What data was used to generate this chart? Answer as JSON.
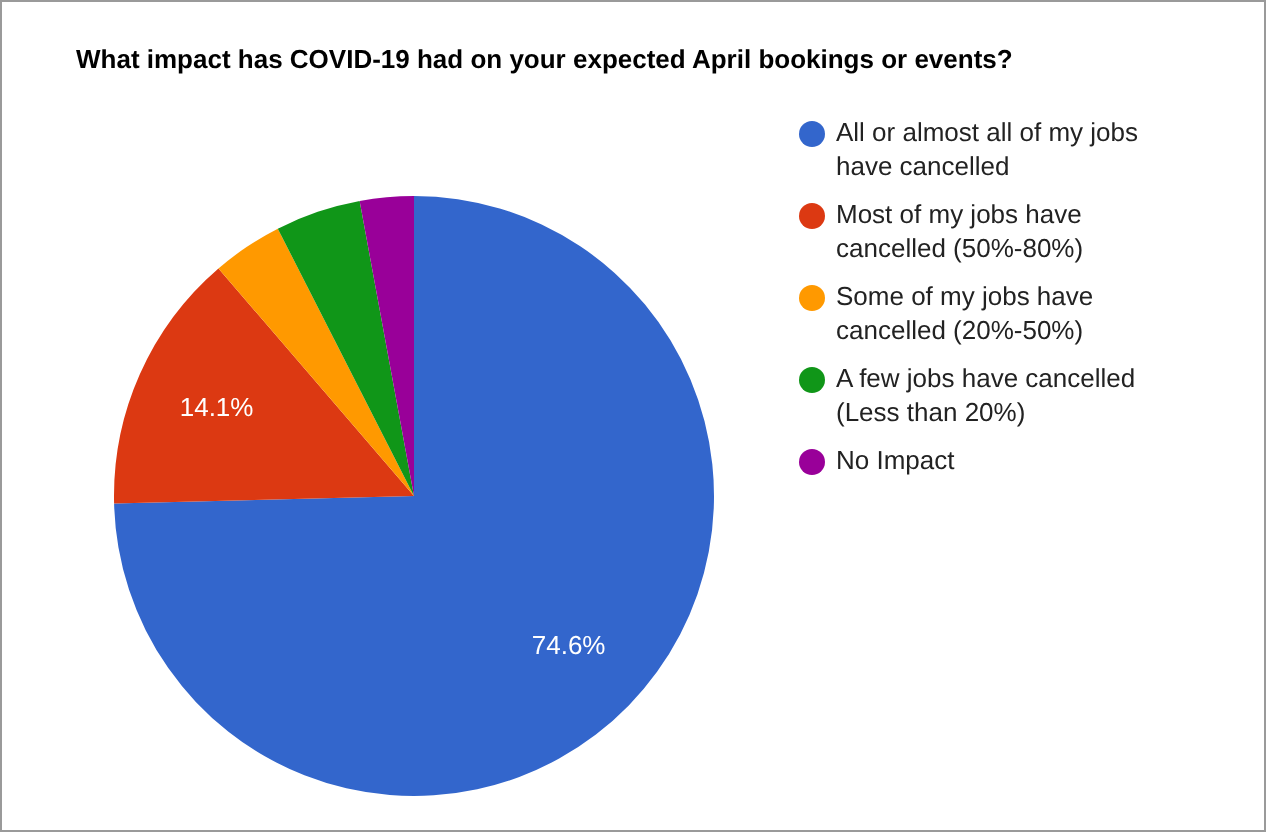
{
  "chart_data": {
    "type": "pie",
    "title": "What impact has COVID-19 had on your expected April bookings or events?",
    "categories": [
      "All or almost all of my jobs have cancelled",
      "Most of my jobs have cancelled (50%-80%)",
      "Some of my jobs have cancelled (20%-50%)",
      "A few jobs have cancelled (Less than 20%)",
      "No Impact"
    ],
    "values": [
      74.6,
      14.1,
      3.8,
      4.6,
      2.9
    ],
    "colors": [
      "#3366cc",
      "#dc3912",
      "#ff9900",
      "#109618",
      "#990099"
    ],
    "value_labels": [
      "74.6%",
      "14.1%",
      null,
      null,
      null
    ],
    "legend": "right"
  }
}
